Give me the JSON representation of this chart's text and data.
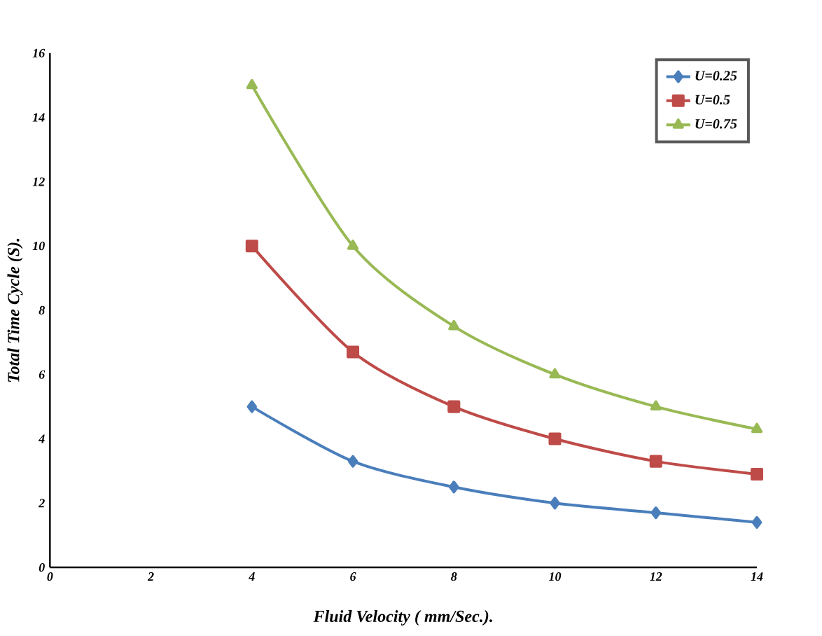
{
  "chart_data": {
    "type": "line",
    "xlabel": "Fluid Velocity ( mm/Sec.).",
    "ylabel": "Total Time Cycle (S).",
    "x": [
      4,
      6,
      8,
      10,
      12,
      14
    ],
    "xlim": [
      0,
      14
    ],
    "xticks": [
      0,
      2,
      4,
      6,
      8,
      10,
      12,
      14
    ],
    "ylim": [
      0,
      16
    ],
    "yticks": [
      0,
      2,
      4,
      6,
      8,
      10,
      12,
      14,
      16
    ],
    "grid": false,
    "legend": "top right",
    "series": [
      {
        "name": "U=0.25",
        "color": "#4a7ebb",
        "marker": "diamond",
        "values": [
          5,
          3.3,
          2.5,
          2,
          1.7,
          1.4
        ]
      },
      {
        "name": "U=0.5",
        "color": "#be4b48",
        "marker": "square",
        "values": [
          10,
          6.7,
          5,
          4,
          3.3,
          2.9
        ]
      },
      {
        "name": "U=0.75",
        "color": "#98b954",
        "marker": "triangle",
        "values": [
          15,
          10,
          7.5,
          6,
          5,
          4.3
        ]
      }
    ]
  }
}
